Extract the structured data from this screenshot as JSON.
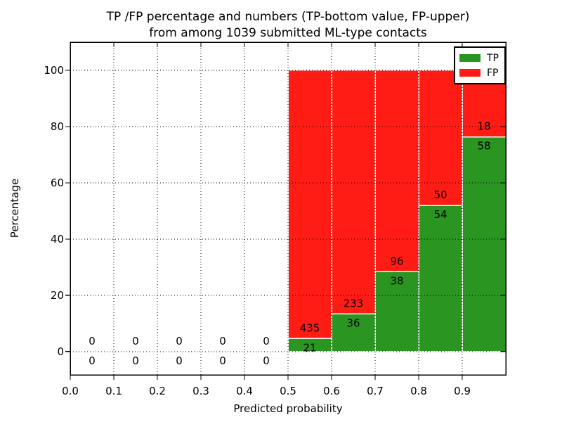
{
  "figure": {
    "title_line1": "TP /FP percentage and numbers (TP-bottom value, FP-upper)",
    "title_line2": "from among 1039 submitted ML-type contacts",
    "xlabel": "Predicted probability",
    "ylabel": "Percentage"
  },
  "chart_data": {
    "type": "bar",
    "stacked": true,
    "normalization": "each non-empty bin stacks TP%+FP% to 100",
    "title": "TP /FP percentage and numbers (TP-bottom value, FP-upper) from among 1039 submitted ML-type contacts",
    "xlabel": "Predicted probability",
    "ylabel": "Percentage",
    "total_contacts": 1039,
    "bin_width": 0.1,
    "bin_starts": [
      0.0,
      0.1,
      0.2,
      0.3,
      0.4,
      0.5,
      0.6,
      0.7,
      0.8,
      0.9
    ],
    "series": [
      {
        "name": "TP",
        "color": "#2a9621",
        "values": [
          0,
          0,
          0,
          0,
          0,
          21,
          36,
          38,
          54,
          58
        ]
      },
      {
        "name": "FP",
        "color": "#fe1c15",
        "values": [
          0,
          0,
          0,
          0,
          0,
          435,
          233,
          96,
          50,
          18
        ]
      }
    ],
    "tp_percent_by_bin": [
      0,
      0,
      0,
      0,
      0,
      4.6,
      13.4,
      28.4,
      51.9,
      76.3
    ],
    "xtick_labels": [
      "0.0",
      "0.1",
      "0.2",
      "0.3",
      "0.4",
      "0.5",
      "0.6",
      "0.7",
      "0.8",
      "0.9"
    ],
    "ytick_values": [
      0,
      20,
      40,
      60,
      80,
      100
    ],
    "xlim": [
      0.0,
      1.0
    ],
    "ylim": [
      -8.3,
      110
    ],
    "grid": "dotted black, both axes",
    "bar_edge_color": "#ffffff",
    "legend": {
      "position": "upper right",
      "entries": [
        {
          "label": "TP",
          "color": "#2a9621"
        },
        {
          "label": "FP",
          "color": "#fe1c15"
        }
      ]
    }
  }
}
